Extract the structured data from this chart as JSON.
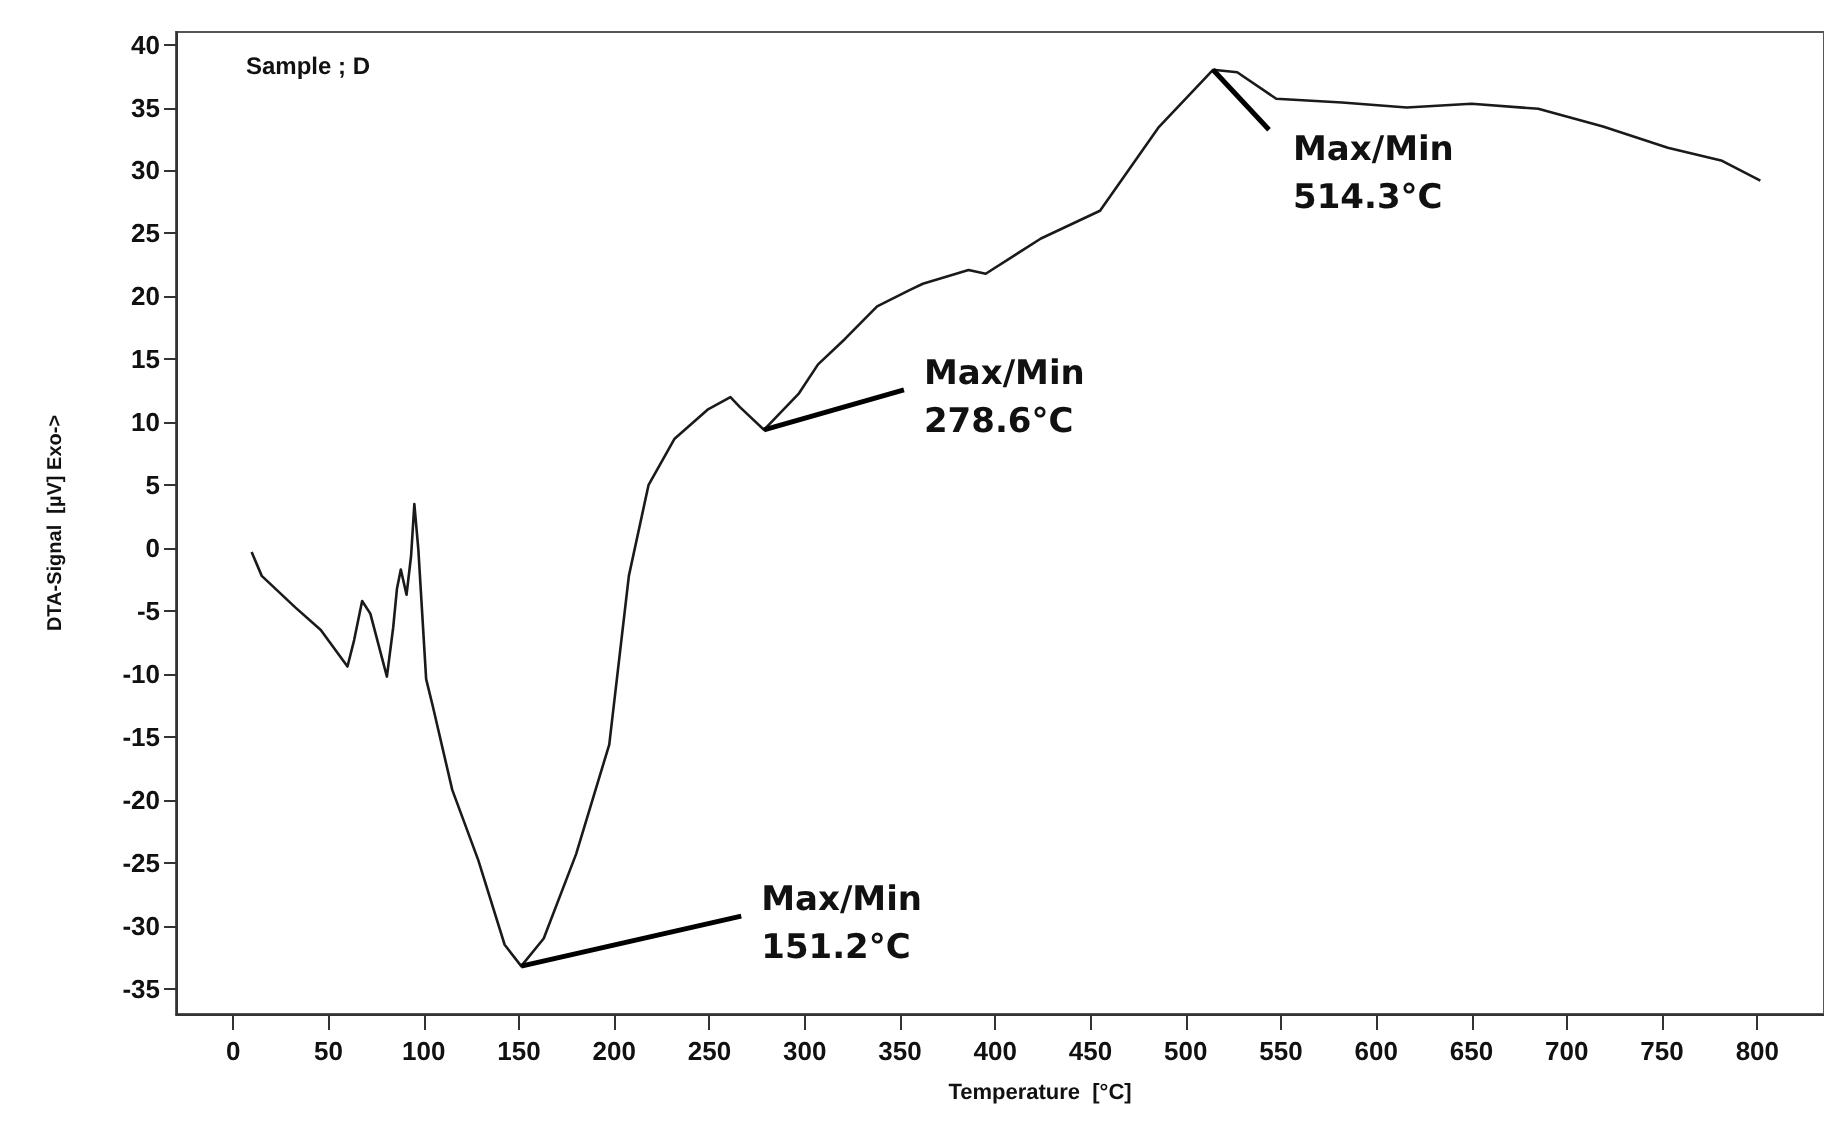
{
  "chart_data": {
    "type": "line",
    "title": "Sample ; D",
    "xlabel": "Temperature  [°C]",
    "ylabel": "DTA-Signal  [µV] Exo->",
    "xlim": [
      -30,
      835
    ],
    "ylim": [
      -37,
      41
    ],
    "xticks": [
      0,
      50,
      100,
      150,
      200,
      250,
      300,
      350,
      400,
      450,
      500,
      550,
      600,
      650,
      700,
      750,
      800
    ],
    "yticks": [
      -35,
      -30,
      -25,
      -20,
      -15,
      -10,
      -5,
      0,
      5,
      10,
      15,
      20,
      25,
      30,
      35,
      40
    ],
    "grid": false,
    "marker": "none",
    "line_style": "solid",
    "annotations": [
      {
        "text": "Max/Min\n151.2°C",
        "x": 151.2,
        "y": -33.2
      },
      {
        "text": "Max/Min\n278.6°C",
        "x": 278.6,
        "y": 9.4
      },
      {
        "text": "Max/Min\n514.3°C",
        "x": 514.3,
        "y": 38
      }
    ],
    "series": [
      {
        "color": "#1a1a1a",
        "x": [
          9.7,
          15,
          32.6,
          46,
          60,
          63.5,
          67.7,
          72,
          80.7,
          84,
          86,
          88,
          91,
          93.4,
          95.1,
          97.2,
          101.3,
          104.7,
          115,
          128.7,
          142.5,
          151.2,
          163,
          180,
          197.4,
          207.7,
          218,
          231.7,
          249,
          261,
          266,
          278.6,
          297,
          307,
          321,
          338,
          355,
          362,
          386,
          395,
          424,
          455,
          485.6,
          514.3,
          527,
          547.5,
          582,
          616,
          650,
          685,
          719,
          753,
          781,
          801.6
        ],
        "values": [
          -0.3,
          -2.2,
          -4.7,
          -6.5,
          -9.4,
          -7.3,
          -4.2,
          -5.2,
          -10.2,
          -6.3,
          -3.2,
          -1.7,
          -3.7,
          -0.6,
          3.5,
          -0.1,
          -10.4,
          -12.5,
          -19.2,
          -24.8,
          -31.5,
          -33.2,
          -31,
          -24.3,
          -15.6,
          -2.2,
          5,
          8.7,
          11,
          12,
          11.2,
          9.4,
          12.3,
          14.6,
          16.6,
          19.2,
          20.5,
          21,
          22.1,
          21.8,
          24.6,
          26.8,
          33.4,
          38,
          37.8,
          35.7,
          35.4,
          35,
          35.3,
          34.9,
          33.5,
          31.8,
          30.8,
          29.2
        ]
      }
    ]
  }
}
